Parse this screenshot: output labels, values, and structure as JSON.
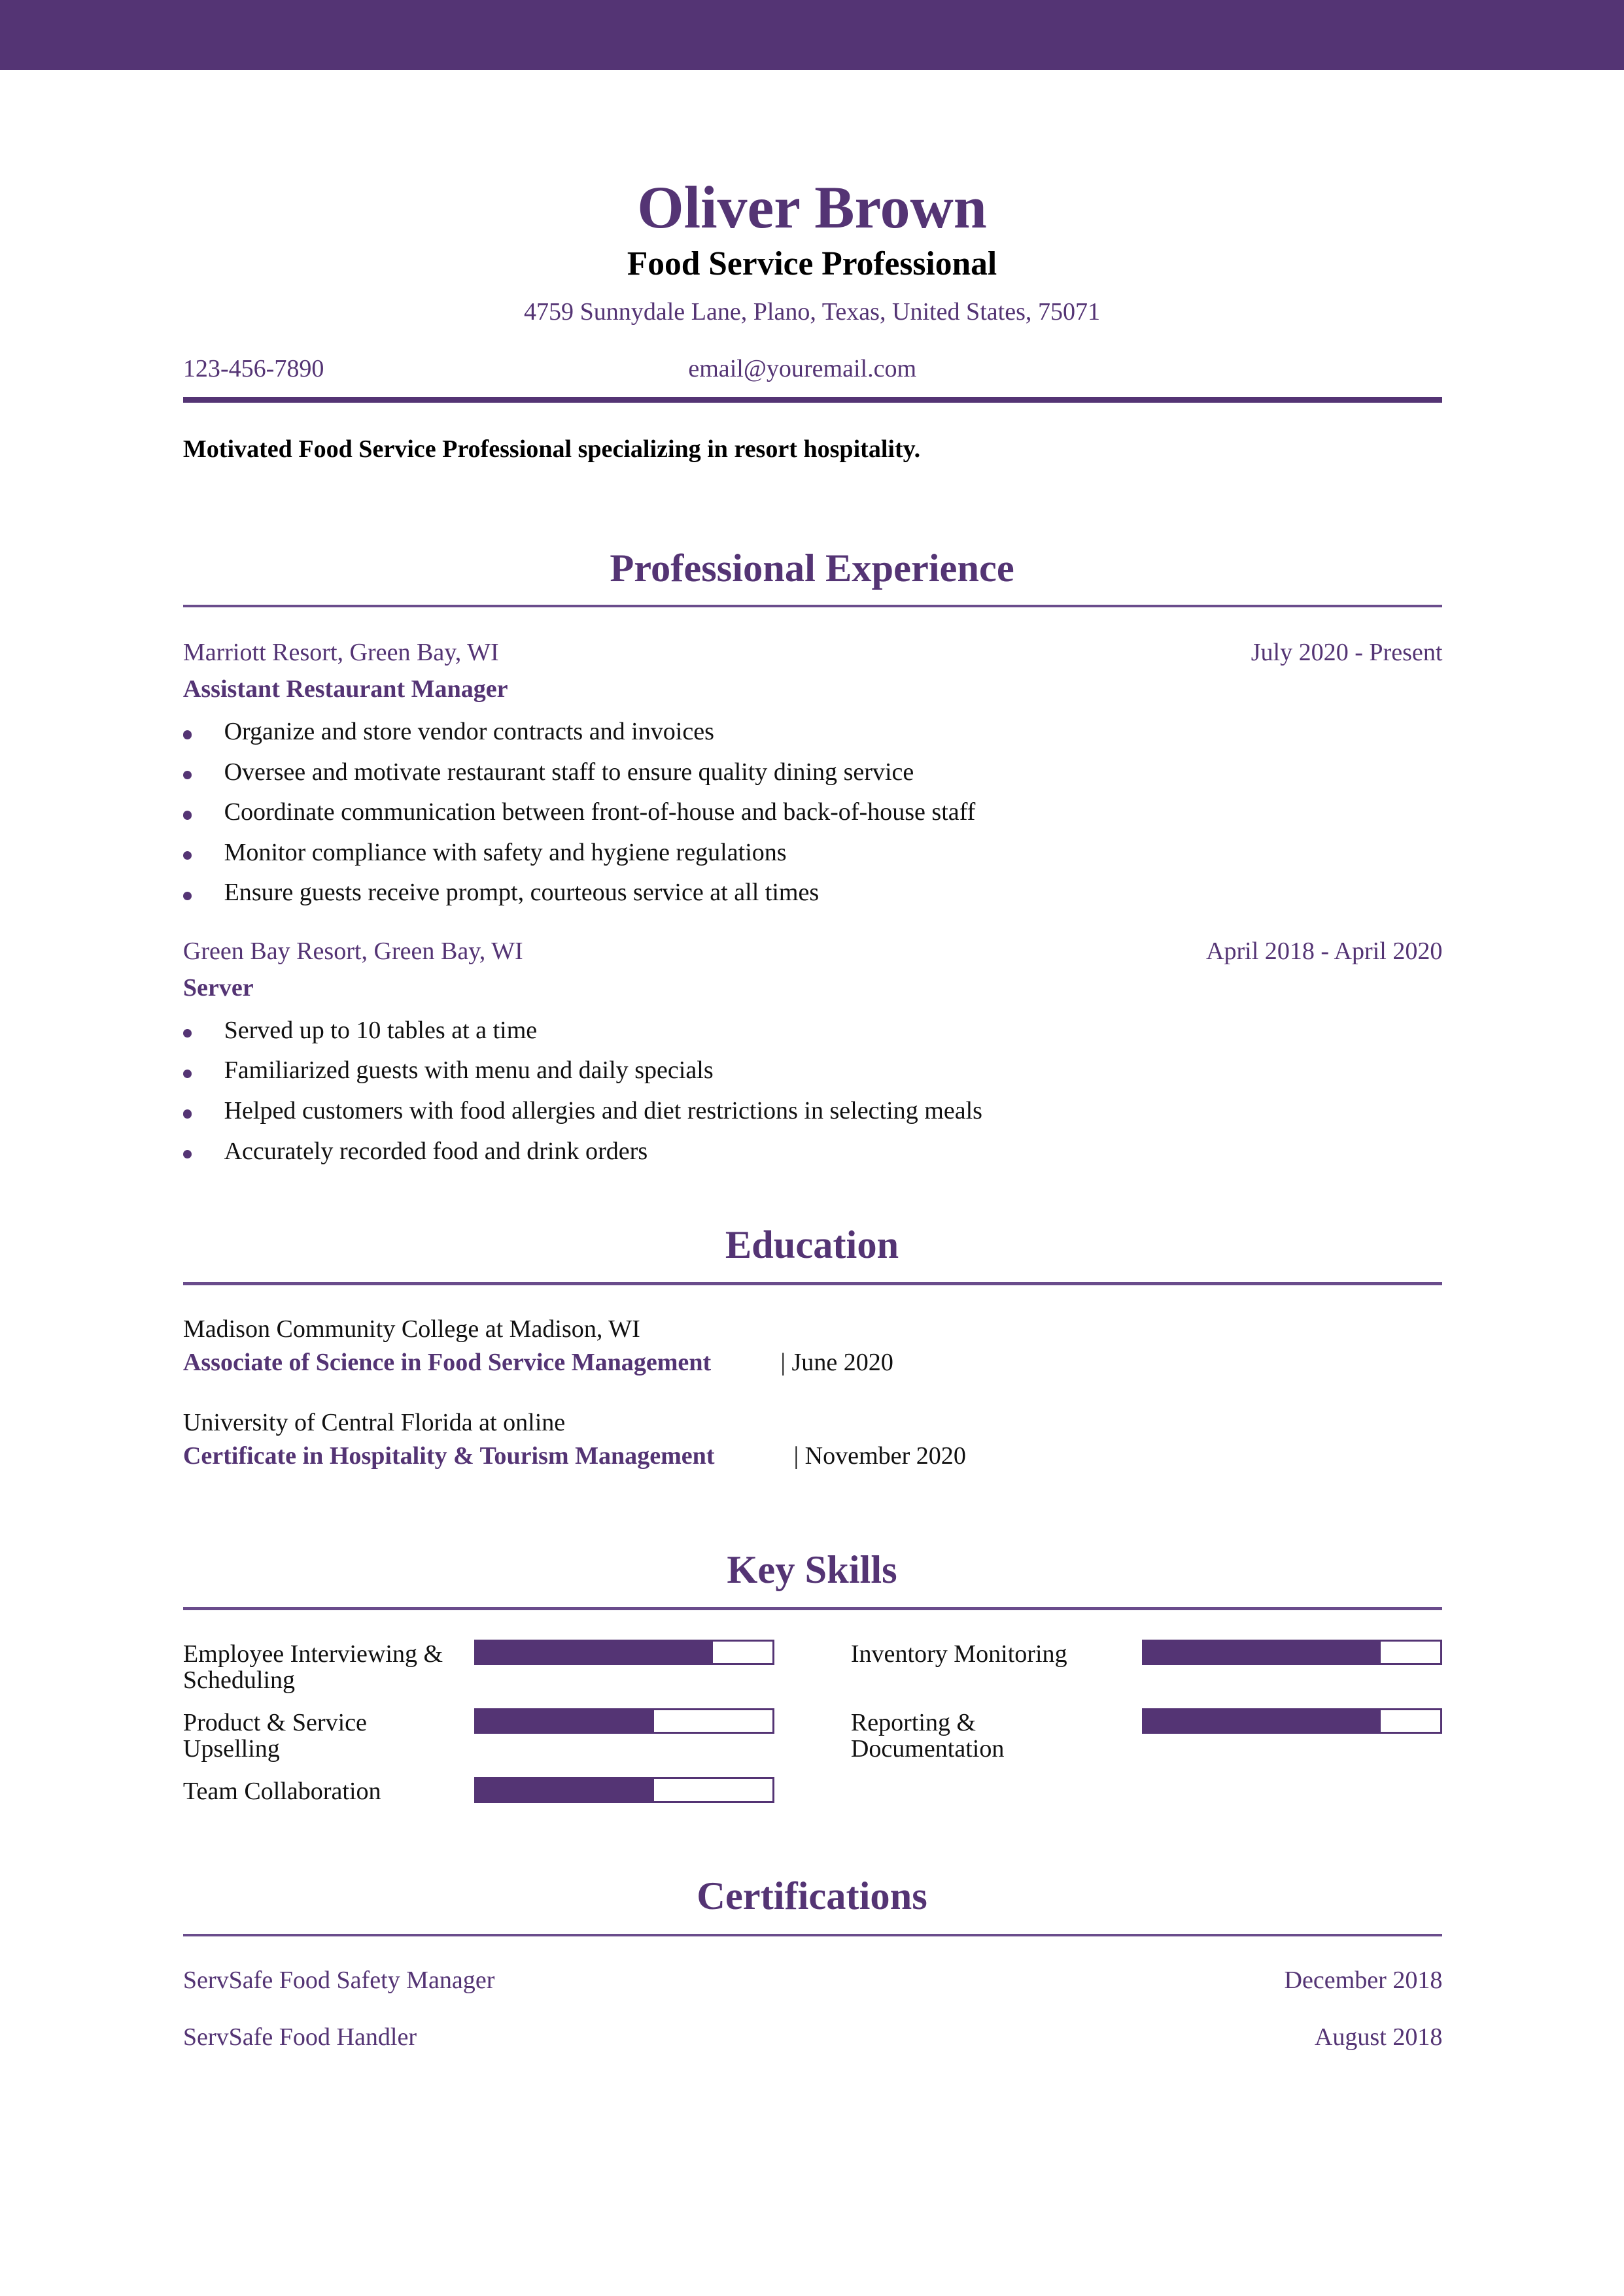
{
  "header": {
    "name": "Oliver Brown",
    "title": "Food Service Professional",
    "address": "4759 Sunnydale Lane, Plano, Texas, United States, 75071",
    "phone": "123-456-7890",
    "email": "email@youremail.com"
  },
  "summary": "Motivated Food Service Professional specializing in resort hospitality.",
  "accent_color": "#543474",
  "experience": {
    "heading": "Professional Experience",
    "jobs": [
      {
        "company": "Marriott Resort, Green Bay, WI",
        "dates": "July 2020 - Present",
        "role": "Assistant Restaurant Manager",
        "bullets": [
          "Organize and store vendor contracts and invoices",
          "Oversee and motivate restaurant staff to ensure quality dining service",
          "Coordinate communication between front-of-house and back-of-house staff",
          "Monitor compliance with safety and hygiene regulations",
          "Ensure guests receive prompt, courteous service at all times"
        ]
      },
      {
        "company": "Green Bay Resort, Green Bay, WI",
        "dates": "April 2018 - April 2020",
        "role": "Server",
        "bullets": [
          "Served up to 10 tables at a time",
          "Familiarized guests with menu and daily specials",
          "Helped customers with food allergies and diet restrictions in selecting meals",
          "Accurately recorded food and drink orders"
        ]
      }
    ]
  },
  "education": {
    "heading": "Education",
    "items": [
      {
        "school": "Madison Community College at Madison, WI",
        "degree": "Associate of Science in Food Service Management",
        "date": "| June 2020"
      },
      {
        "school": "University of Central Florida at online",
        "degree": "Certificate in Hospitality & Tourism Management",
        "date": "| November 2020"
      }
    ]
  },
  "skills": {
    "heading": "Key Skills",
    "items": [
      {
        "name": "Employee Interviewing & Scheduling",
        "level": 0.8
      },
      {
        "name": "Inventory Monitoring",
        "level": 0.8
      },
      {
        "name": "Product & Service Upselling",
        "level": 0.6
      },
      {
        "name": "Reporting & Documentation",
        "level": 0.8
      },
      {
        "name": "Team Collaboration",
        "level": 0.6
      }
    ]
  },
  "certifications": {
    "heading": "Certifications",
    "items": [
      {
        "name": "ServSafe Food Safety Manager",
        "date": "December 2018"
      },
      {
        "name": "ServSafe Food Handler",
        "date": "August 2018"
      }
    ]
  }
}
